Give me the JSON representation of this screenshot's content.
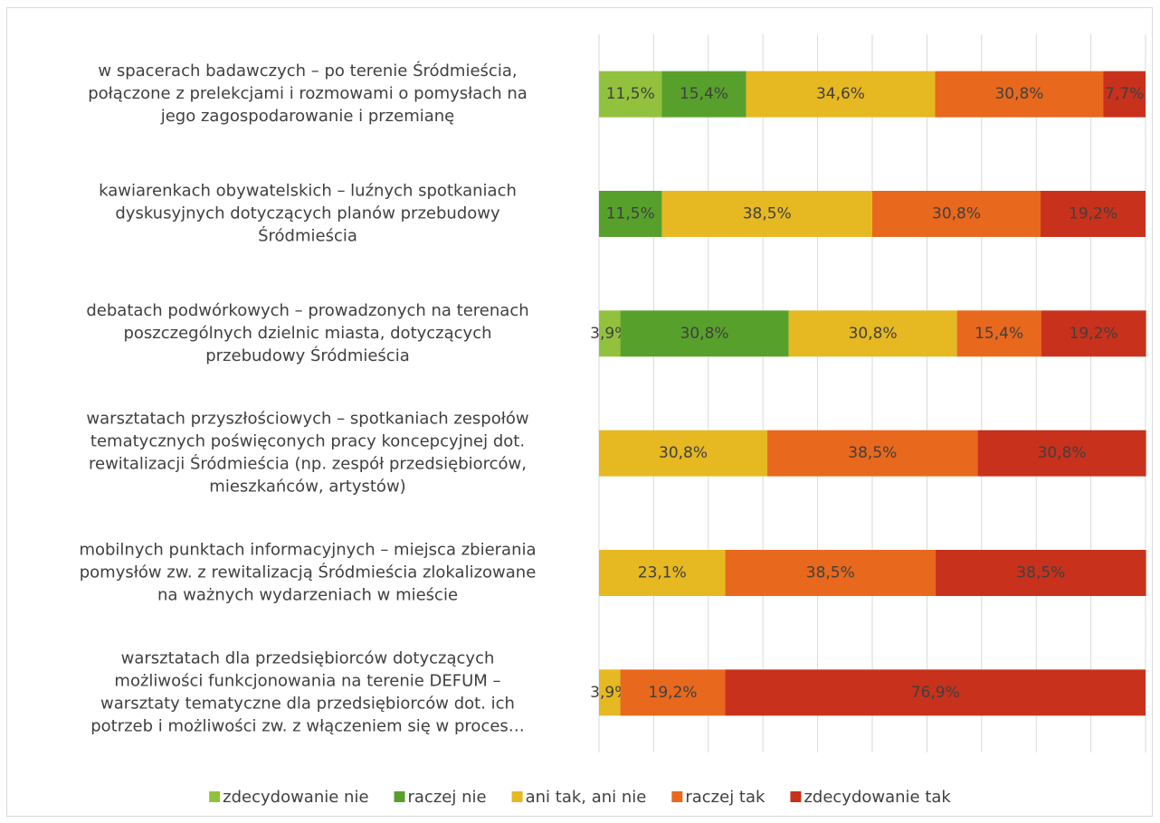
{
  "chart_data": {
    "type": "stacked_bar_h",
    "categories": [
      [
        "w spacerach badawczych – po terenie Śródmieścia,",
        "połączone z prelekcjami i rozmowami o pomysłach na",
        "jego zagospodarowanie i przemianę"
      ],
      [
        "kawiarenkach obywatelskich – luźnych spotkaniach",
        "dyskusyjnych dotyczących planów przebudowy",
        "Śródmieścia"
      ],
      [
        "debatach podwórkowych – prowadzonych na terenach",
        "poszczególnych dzielnic miasta, dotyczących",
        "przebudowy Śródmieścia"
      ],
      [
        "warsztatach przyszłościowych – spotkaniach zespołów",
        "tematycznych poświęconych pracy koncepcyjnej dot.",
        "rewitalizacji Śródmieścia (np. zespół przedsiębiorców,",
        "mieszkańców, artystów)"
      ],
      [
        "mobilnych punktach informacyjnych – miejsca zbierania",
        "pomysłów zw. z rewitalizacją Śródmieścia zlokalizowane",
        "na ważnych wydarzeniach w mieście"
      ],
      [
        "warsztatach dla przedsiębiorców dotyczących",
        "możliwości funkcjonowania na terenie DEFUM –",
        "warsztaty tematyczne dla przedsiębiorców dot. ich",
        "potrzeb i możliwości zw. z włączeniem się w proces…"
      ]
    ],
    "series": [
      {
        "name": "zdecydowanie nie",
        "color": "#92c13e",
        "values": [
          11.5,
          null,
          3.9,
          null,
          null,
          null
        ],
        "value_labels": [
          "11,5%",
          null,
          "3,9%",
          null,
          null,
          null
        ]
      },
      {
        "name": "raczej nie",
        "color": "#58a02c",
        "values": [
          15.4,
          11.5,
          30.8,
          null,
          null,
          null
        ],
        "value_labels": [
          "15,4%",
          "11,5%",
          "30,8%",
          null,
          null,
          null
        ]
      },
      {
        "name": "ani tak, ani nie",
        "color": "#e6b822",
        "values": [
          34.6,
          38.5,
          30.8,
          30.8,
          23.1,
          3.9
        ],
        "value_labels": [
          "34,6%",
          "38,5%",
          "30,8%",
          "30,8%",
          "23,1%",
          "3,9%"
        ]
      },
      {
        "name": "raczej tak",
        "color": "#e8681d",
        "values": [
          30.8,
          30.8,
          15.4,
          38.5,
          38.5,
          19.2
        ],
        "value_labels": [
          "30,8%",
          "30,8%",
          "15,4%",
          "38,5%",
          "38,5%",
          "19,2%"
        ]
      },
      {
        "name": "zdecydowanie tak",
        "color": "#c8311c",
        "values": [
          7.7,
          19.2,
          19.2,
          30.8,
          38.5,
          76.9
        ],
        "value_labels": [
          "7,7%",
          "19,2%",
          "19,2%",
          "30,8%",
          "38,5%",
          "76,9%"
        ]
      }
    ],
    "xlim": [
      0,
      100
    ],
    "xticks": [
      0,
      10,
      20,
      30,
      40,
      50,
      60,
      70,
      80,
      90,
      100
    ],
    "grid": true,
    "legend": "bottom"
  }
}
